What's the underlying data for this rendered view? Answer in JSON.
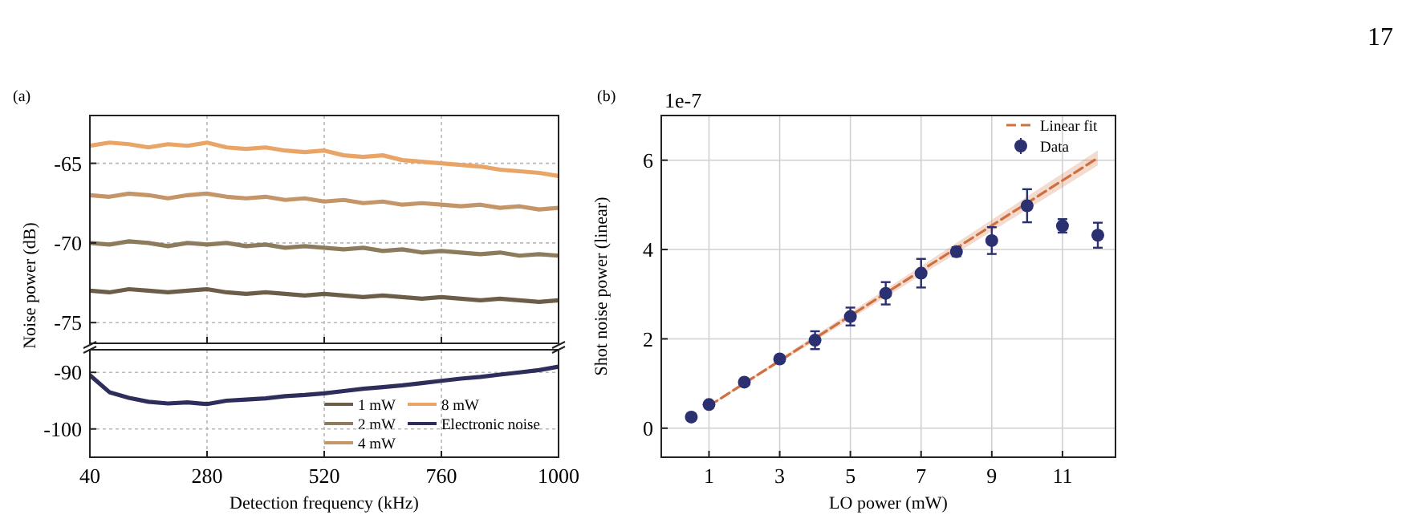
{
  "chart_data": [
    {
      "type": "line",
      "title": "(a)",
      "ylabel": "Noise power (dB)",
      "x": [
        40,
        80,
        120,
        160,
        200,
        240,
        280,
        320,
        360,
        400,
        440,
        480,
        520,
        560,
        600,
        640,
        680,
        720,
        760,
        800,
        840,
        880,
        920,
        960,
        1000
      ],
      "xlim": [
        40,
        1000
      ],
      "xticks": [
        40,
        280,
        520,
        760,
        1000
      ],
      "ylim": [
        -76.3,
        -62
      ],
      "yticks": [
        -65,
        -70,
        -75
      ],
      "tick_labels": "y",
      "grid": true,
      "legend": "bottom right",
      "series": [
        {
          "name": "1 mW",
          "color": "#6b5d48",
          "values": [
            -73.0,
            -73.1,
            -72.9,
            -73.0,
            -73.1,
            -73.0,
            -72.9,
            -73.1,
            -73.2,
            -73.1,
            -73.2,
            -73.3,
            -73.2,
            -73.3,
            -73.4,
            -73.3,
            -73.4,
            -73.5,
            -73.4,
            -73.5,
            -73.6,
            -73.5,
            -73.6,
            -73.7,
            -73.6
          ]
        },
        {
          "name": "2 mW",
          "color": "#8c7b5c",
          "values": [
            -70.0,
            -70.1,
            -69.9,
            -70.0,
            -70.2,
            -70.0,
            -70.1,
            -70.0,
            -70.2,
            -70.1,
            -70.3,
            -70.2,
            -70.3,
            -70.4,
            -70.3,
            -70.5,
            -70.4,
            -70.6,
            -70.5,
            -70.6,
            -70.7,
            -70.6,
            -70.8,
            -70.7,
            -70.8
          ]
        },
        {
          "name": "4 mW",
          "color": "#c49569",
          "values": [
            -67.0,
            -67.1,
            -66.9,
            -67.0,
            -67.2,
            -67.0,
            -66.9,
            -67.1,
            -67.2,
            -67.1,
            -67.3,
            -67.2,
            -67.4,
            -67.3,
            -67.5,
            -67.4,
            -67.6,
            -67.5,
            -67.6,
            -67.7,
            -67.6,
            -67.8,
            -67.7,
            -67.9,
            -67.8
          ]
        },
        {
          "name": "8 mW",
          "color": "#e9a467",
          "values": [
            -63.9,
            -63.7,
            -63.8,
            -64.0,
            -63.8,
            -63.9,
            -63.7,
            -64.0,
            -64.1,
            -64.0,
            -64.2,
            -64.3,
            -64.2,
            -64.5,
            -64.6,
            -64.5,
            -64.8,
            -64.9,
            -65.0,
            -65.1,
            -65.2,
            -65.4,
            -65.5,
            -65.6,
            -65.8
          ]
        }
      ]
    },
    {
      "type": "line",
      "xlabel": "Detection frequency (kHz)",
      "x": [
        40,
        80,
        120,
        160,
        200,
        240,
        280,
        320,
        360,
        400,
        440,
        480,
        520,
        560,
        600,
        640,
        680,
        720,
        760,
        800,
        840,
        880,
        920,
        960,
        1000
      ],
      "xlim": [
        40,
        1000
      ],
      "xticks": [
        40,
        280,
        520,
        760,
        1000
      ],
      "ylim": [
        -105,
        -86
      ],
      "yticks": [
        -90,
        -100
      ],
      "grid": true,
      "legend": "bottom right",
      "series": [
        {
          "name": "Electronic noise",
          "color": "#2e2e5c",
          "values": [
            -90.5,
            -93.5,
            -94.5,
            -95.2,
            -95.5,
            -95.3,
            -95.6,
            -95.0,
            -94.8,
            -94.6,
            -94.2,
            -94.0,
            -93.7,
            -93.3,
            -92.9,
            -92.6,
            -92.3,
            -91.9,
            -91.5,
            -91.1,
            -90.8,
            -90.4,
            -90.0,
            -89.6,
            -89.0
          ]
        }
      ]
    },
    {
      "type": "scatter",
      "title": "(b)",
      "xlabel": "LO power (mW)",
      "ylabel": "Shot noise power (linear)",
      "annotations": [
        "1e-7",
        "17"
      ],
      "xlim": [
        -0.35,
        12.5
      ],
      "xticks": [
        1,
        3,
        5,
        7,
        9,
        11
      ],
      "ylim": [
        -0.65,
        7
      ],
      "yticks": [
        0,
        2,
        4,
        6
      ],
      "grid": true,
      "legend": "top right",
      "series": [
        {
          "name": "Linear fit",
          "type": "line",
          "line_style": "dashed",
          "color": "#d0703e",
          "x": [
            1,
            12
          ],
          "values": [
            0.5,
            6.05
          ],
          "lower": [
            0.48,
            5.88
          ],
          "upper": [
            0.52,
            6.22
          ]
        },
        {
          "name": "Data",
          "marker": "circle",
          "color": "#2b3070",
          "x": [
            0.5,
            1,
            2,
            3,
            4,
            5,
            6,
            7,
            8,
            9,
            10,
            11,
            12
          ],
          "values": [
            0.25,
            0.53,
            1.03,
            1.55,
            1.97,
            2.5,
            3.02,
            3.47,
            3.95,
            4.2,
            4.98,
            4.53,
            4.32
          ],
          "errors": [
            0.04,
            0.05,
            0.05,
            0.05,
            0.2,
            0.2,
            0.25,
            0.32,
            0.1,
            0.3,
            0.37,
            0.15,
            0.28
          ]
        }
      ]
    }
  ]
}
